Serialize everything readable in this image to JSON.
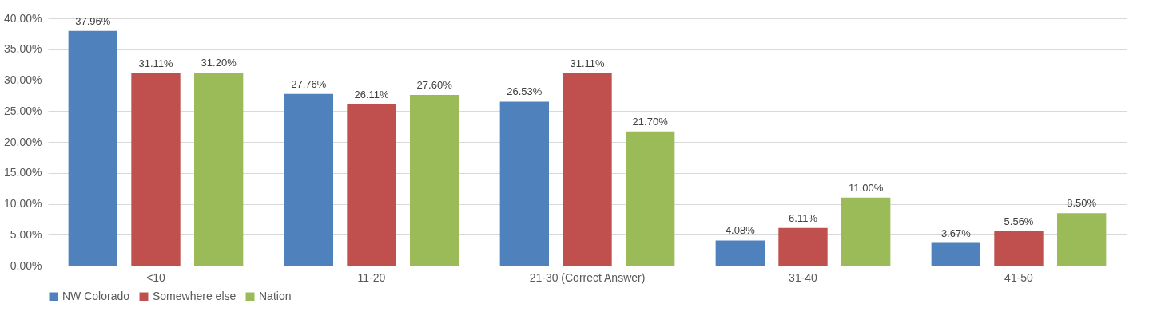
{
  "chart_data": {
    "type": "bar",
    "categories": [
      "<10",
      "11-20",
      "21-30 (Correct Answer)",
      "31-40",
      "41-50"
    ],
    "series": [
      {
        "name": "NW Colorado",
        "color": "#4f81bd",
        "values": [
          37.96,
          27.76,
          26.53,
          4.08,
          3.67
        ],
        "value_labels": [
          "37.96%",
          "27.76%",
          "26.53%",
          "4.08%",
          "3.67%"
        ]
      },
      {
        "name": "Somewhere else",
        "color": "#c0504d",
        "values": [
          31.11,
          26.11,
          31.11,
          6.11,
          5.56
        ],
        "value_labels": [
          "31.11%",
          "26.11%",
          "31.11%",
          "6.11%",
          "5.56%"
        ]
      },
      {
        "name": "Nation",
        "color": "#9bbb59",
        "values": [
          31.2,
          27.6,
          21.7,
          11.0,
          8.5
        ],
        "value_labels": [
          "31.20%",
          "27.60%",
          "21.70%",
          "11.00%",
          "8.50%"
        ]
      }
    ],
    "ylim": [
      0,
      40
    ],
    "yticks": [
      {
        "value": 0,
        "label": "0.00%"
      },
      {
        "value": 5,
        "label": "5.00%"
      },
      {
        "value": 10,
        "label": "10.00%"
      },
      {
        "value": 15,
        "label": "15.00%"
      },
      {
        "value": 20,
        "label": "20.00%"
      },
      {
        "value": 25,
        "label": "25.00%"
      },
      {
        "value": 30,
        "label": "30.00%"
      },
      {
        "value": 35,
        "label": "35.00%"
      },
      {
        "value": 40,
        "label": "40.00%"
      }
    ],
    "grid": "y",
    "legend": "bottom"
  }
}
